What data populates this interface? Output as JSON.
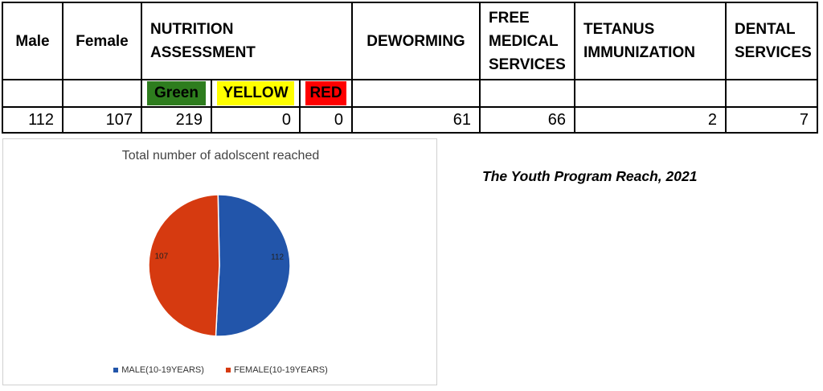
{
  "table": {
    "headers": {
      "male": "Male",
      "female": "Female",
      "nutrition_line1": "NUTRITION",
      "nutrition_line2": "ASSESSMENT",
      "deworming": "DEWORMING",
      "free_line1": "FREE",
      "free_line2": "MEDICAL",
      "free_line3": "SERVICES",
      "tetanus_line1": "TETANUS",
      "tetanus_line2": "IMMUNIZATION",
      "dental_line1": "DENTAL",
      "dental_line2": "SERVICES"
    },
    "nutrition_sub": [
      {
        "label": "Green",
        "color": "#2e7d1e"
      },
      {
        "label": "YELLOW",
        "color": "#ffff00"
      },
      {
        "label": "RED",
        "color": "#ff0000"
      }
    ],
    "values": {
      "male": "112",
      "female": "107",
      "green": "219",
      "yellow": "0",
      "red": "0",
      "deworming": "61",
      "free_medical": "66",
      "tetanus": "2",
      "dental": "7"
    }
  },
  "caption": "The Youth Program Reach, 2021",
  "chart_data": {
    "type": "pie",
    "title": "Total number of adolscent reached",
    "series": [
      {
        "name": "MALE(10-19YEARS)",
        "value": 112,
        "color": "#2255aa"
      },
      {
        "name": "FEMALE(10-19YEARS)",
        "value": 107,
        "color": "#d63a10"
      }
    ],
    "legend_position": "bottom"
  }
}
